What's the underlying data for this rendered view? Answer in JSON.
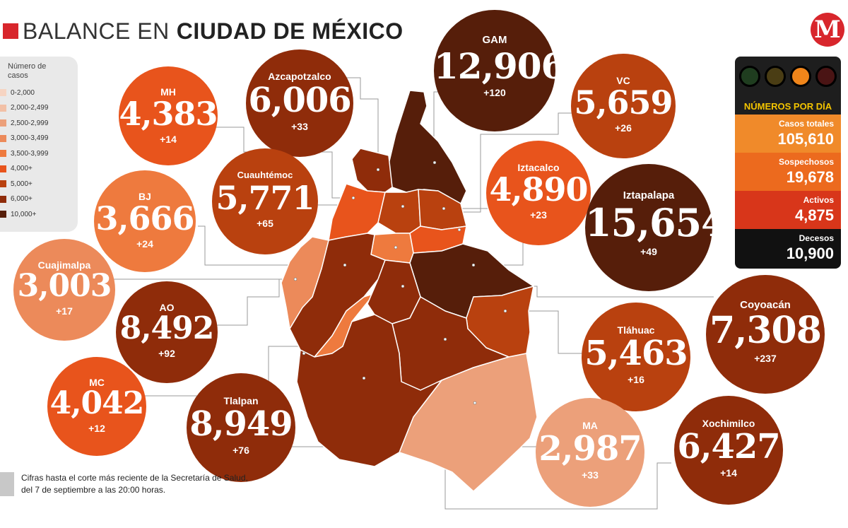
{
  "header": {
    "title_light": "BALANCE EN",
    "title_bold": "CIUDAD DE MÉXICO"
  },
  "logo": {
    "letter": "M",
    "color": "#d8262c"
  },
  "legend": {
    "title": "Número de casos",
    "items": [
      {
        "label": "0-2,000",
        "color": "#f6d4c2"
      },
      {
        "label": "2,000-2,499",
        "color": "#f2c0a6"
      },
      {
        "label": "2,500-2,999",
        "color": "#eca07a"
      },
      {
        "label": "3,000-3,499",
        "color": "#ec8a5a"
      },
      {
        "label": "3,500-3,999",
        "color": "#ee7a3e"
      },
      {
        "label": "4,000+",
        "color": "#e8541c"
      },
      {
        "label": "5,000+",
        "color": "#b9410f"
      },
      {
        "label": "6,000+",
        "color": "#8f2c0a"
      },
      {
        "label": "10,000+",
        "color": "#561e0a"
      }
    ]
  },
  "alcaldias": [
    {
      "name": "MH",
      "cases": "4,383",
      "delta": "+14",
      "color": "#e8541c"
    },
    {
      "name": "Azcapotzalco",
      "cases": "6,006",
      "delta": "+33",
      "color": "#8f2c0a"
    },
    {
      "name": "GAM",
      "cases": "12,906",
      "delta": "+120",
      "color": "#561e0a"
    },
    {
      "name": "VC",
      "cases": "5,659",
      "delta": "+26",
      "color": "#b9410f"
    },
    {
      "name": "BJ",
      "cases": "3,666",
      "delta": "+24",
      "color": "#ee7a3e"
    },
    {
      "name": "Cuauhtémoc",
      "cases": "5,771",
      "delta": "+65",
      "color": "#b9410f"
    },
    {
      "name": "Iztacalco",
      "cases": "4,890",
      "delta": "+23",
      "color": "#e8541c"
    },
    {
      "name": "Iztapalapa",
      "cases": "15,654",
      "delta": "+49",
      "color": "#561e0a"
    },
    {
      "name": "Cuajimalpa",
      "cases": "3,003",
      "delta": "+17",
      "color": "#ec8a5a"
    },
    {
      "name": "AO",
      "cases": "8,492",
      "delta": "+92",
      "color": "#8f2c0a"
    },
    {
      "name": "Coyoacán",
      "cases": "7,308",
      "delta": "+237",
      "color": "#8f2c0a"
    },
    {
      "name": "Tláhuac",
      "cases": "5,463",
      "delta": "+16",
      "color": "#b9410f"
    },
    {
      "name": "MC",
      "cases": "4,042",
      "delta": "+12",
      "color": "#e8541c"
    },
    {
      "name": "Tlalpan",
      "cases": "8,949",
      "delta": "+76",
      "color": "#8f2c0a"
    },
    {
      "name": "MA",
      "cases": "2,987",
      "delta": "+33",
      "color": "#eca07a"
    },
    {
      "name": "Xochimilco",
      "cases": "6,427",
      "delta": "+14",
      "color": "#8f2c0a"
    }
  ],
  "stats": {
    "header": "NÚMEROS POR DÍA",
    "items": [
      {
        "label": "Casos totales",
        "value": "105,610",
        "color": "#f08a2a"
      },
      {
        "label": "Sospechosos",
        "value": "19,678",
        "color": "#ec6a1e"
      },
      {
        "label": "Activos",
        "value": "4,875",
        "color": "#d8361a"
      },
      {
        "label": "Decesos",
        "value": "10,900",
        "color": "#111111"
      }
    ],
    "lights": [
      "#1f3d1f",
      "#4a3d14",
      "#f0851a",
      "#4a1414"
    ]
  },
  "footnote": "Cifras hasta el corte más reciente de la Secretaría de Salud, del 7 de septiembre a las 20:00 horas."
}
